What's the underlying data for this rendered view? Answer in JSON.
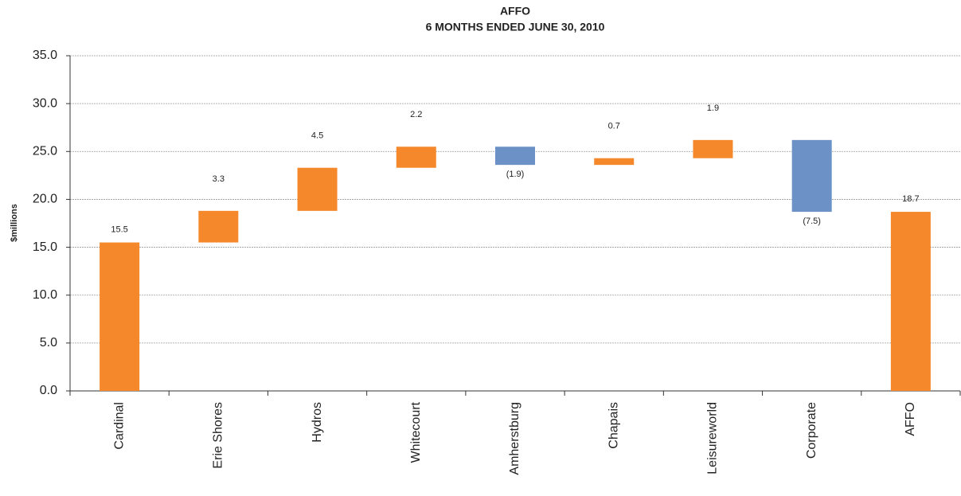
{
  "chart_data": {
    "type": "waterfall",
    "title": "AFFO",
    "subtitle": "6 MONTHS ENDED JUNE 30, 2010",
    "y_label": "$millions",
    "categories": [
      "Cardinal",
      "Erie Shores",
      "Hydros",
      "Whitecourt",
      "Amherstburg",
      "Chapais",
      "Leisureworld",
      "Corporate",
      "AFFO"
    ],
    "values": [
      15.5,
      3.3,
      4.5,
      2.2,
      -1.9,
      0.7,
      1.9,
      -7.5,
      18.7
    ],
    "value_labels": [
      "15.5",
      "3.3",
      "4.5",
      "2.2",
      "(1.9)",
      "0.7",
      "1.9",
      "(7.5)",
      "18.7"
    ],
    "measures": [
      "absolute",
      "relative",
      "relative",
      "relative",
      "relative",
      "relative",
      "relative",
      "relative",
      "total"
    ],
    "increase_color": "#f5882b",
    "decrease_color": "#6b91c6",
    "total_color": "#f5882b",
    "ylim": [
      0,
      35
    ],
    "yticks": [
      {
        "value": 0,
        "label": "0.0"
      },
      {
        "value": 5,
        "label": "5.0"
      },
      {
        "value": 10,
        "label": "10.0"
      },
      {
        "value": 15,
        "label": "15.0"
      },
      {
        "value": 20,
        "label": "20.0"
      },
      {
        "value": 25,
        "label": "25.0"
      },
      {
        "value": 30,
        "label": "30.0"
      },
      {
        "value": 35,
        "label": "35.0"
      }
    ],
    "grid": true
  }
}
